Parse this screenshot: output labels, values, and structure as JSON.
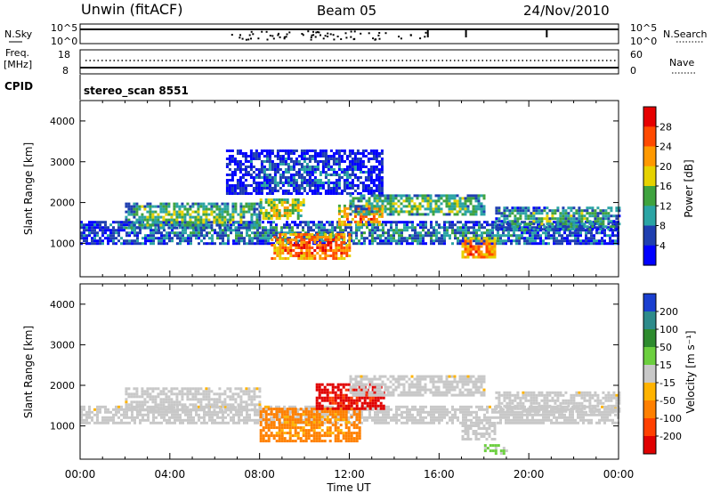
{
  "header": {
    "station": "Unwin (fitACF)",
    "beam": "Beam 05",
    "date": "24/Nov/2010"
  },
  "nsky_panel": {
    "left_label": "N.Sky",
    "right_label": "N.Search",
    "left_ticks": [
      "10^5",
      "10^0"
    ],
    "right_ticks": [
      "10^5",
      "10^0"
    ]
  },
  "freq_panel": {
    "left_label_top": "Freq.",
    "left_label_unit": "[MHz]",
    "right_label": "Nave",
    "left_ticks": [
      "18",
      "8"
    ],
    "right_ticks": [
      "60",
      "0"
    ]
  },
  "cpid": {
    "label": "CPID",
    "value": "stereo_scan 8551"
  },
  "power_panel": {
    "ylabel": "Slant Range [km]",
    "yticks": [
      "4000",
      "3000",
      "2000",
      "1000"
    ],
    "colorbar_label": "Power [dB]",
    "colorbar_ticks": [
      "28",
      "24",
      "20",
      "16",
      "12",
      "8",
      "4"
    ],
    "colorbar_colors": [
      "#e60000",
      "#ff4a00",
      "#ff9900",
      "#e6d200",
      "#3fa33f",
      "#2ba4a4",
      "#1f3fb0",
      "#0000ff"
    ]
  },
  "velocity_panel": {
    "ylabel": "Slant Range [km]",
    "yticks": [
      "4000",
      "3000",
      "2000",
      "1000"
    ],
    "colorbar_label": "Velocity [m s⁻¹]",
    "colorbar_ticks": [
      "200",
      "100",
      "50",
      "15",
      "-15",
      "-50",
      "-100",
      "-200"
    ],
    "colorbar_colors": [
      "#1a3fd0",
      "#2e8b8b",
      "#2e8b2e",
      "#6ccf3f",
      "#c8c8c8",
      "#ffb300",
      "#ff8000",
      "#ff4000",
      "#e00000"
    ]
  },
  "xaxis": {
    "label": "Time UT",
    "ticks": [
      "00:00",
      "04:00",
      "08:00",
      "12:00",
      "16:00",
      "20:00",
      "00:00"
    ]
  },
  "chart_data": [
    {
      "type": "heatmap",
      "title": "Power [dB]",
      "ylabel": "Slant Range [km]",
      "xlabel": "Time UT",
      "xlim_hours": [
        0,
        24
      ],
      "ylim_km": [
        180,
        4500
      ],
      "color_range": [
        0,
        32
      ],
      "regions": [
        {
          "t0": 0.0,
          "t1": 24.0,
          "r0": 1000,
          "r1": 1550,
          "level": 9
        },
        {
          "t0": 2.0,
          "t1": 8.0,
          "r0": 1400,
          "r1": 2000,
          "level": 14
        },
        {
          "t0": 6.5,
          "t1": 13.5,
          "r0": 2200,
          "r1": 3300,
          "level": 6
        },
        {
          "t0": 8.0,
          "t1": 10.0,
          "r0": 1600,
          "r1": 2100,
          "level": 18
        },
        {
          "t0": 8.5,
          "t1": 12.0,
          "r0": 650,
          "r1": 1250,
          "level": 26
        },
        {
          "t0": 11.5,
          "t1": 13.5,
          "r0": 1450,
          "r1": 1950,
          "level": 24
        },
        {
          "t0": 12.0,
          "t1": 18.0,
          "r0": 1700,
          "r1": 2200,
          "level": 14
        },
        {
          "t0": 17.0,
          "t1": 18.5,
          "r0": 650,
          "r1": 1150,
          "level": 24
        },
        {
          "t0": 18.5,
          "t1": 24.0,
          "r0": 1350,
          "r1": 1900,
          "level": 12
        }
      ]
    },
    {
      "type": "heatmap",
      "title": "Velocity [m s⁻¹]",
      "ylabel": "Slant Range [km]",
      "xlabel": "Time UT",
      "xlim_hours": [
        0,
        24
      ],
      "ylim_km": [
        180,
        4500
      ],
      "color_range": [
        -250,
        250
      ],
      "regions": [
        {
          "t0": 0.0,
          "t1": 24.0,
          "r0": 1050,
          "r1": 1500,
          "level": 0
        },
        {
          "t0": 2.0,
          "t1": 8.0,
          "r0": 1400,
          "r1": 1950,
          "level": 0
        },
        {
          "t0": 8.0,
          "t1": 12.5,
          "r0": 650,
          "r1": 1450,
          "level": -90
        },
        {
          "t0": 10.5,
          "t1": 13.5,
          "r0": 1400,
          "r1": 2050,
          "level": -200
        },
        {
          "t0": 12.0,
          "t1": 18.0,
          "r0": 1750,
          "r1": 2250,
          "level": 0
        },
        {
          "t0": 17.0,
          "t1": 18.5,
          "r0": 650,
          "r1": 1100,
          "level": 0
        },
        {
          "t0": 18.0,
          "t1": 19.0,
          "r0": 300,
          "r1": 550,
          "level": 40
        },
        {
          "t0": 18.5,
          "t1": 24.0,
          "r0": 1350,
          "r1": 1850,
          "level": 0
        }
      ]
    }
  ]
}
